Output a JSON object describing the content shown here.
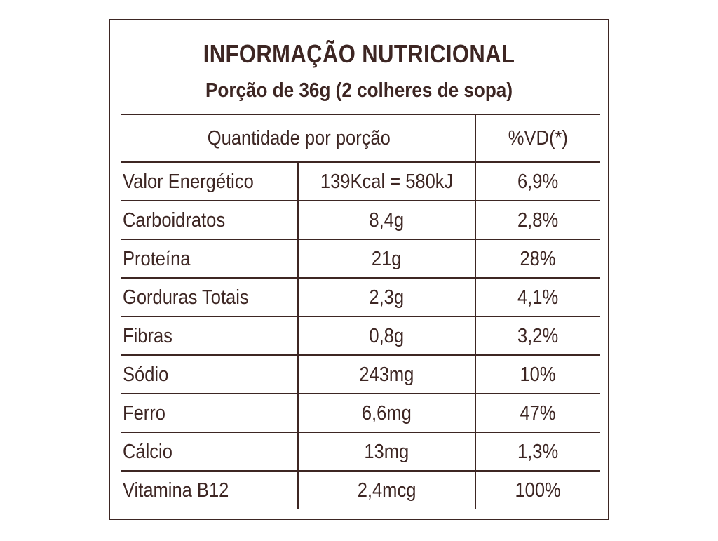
{
  "label": {
    "title": "INFORMAÇÃO NUTRICIONAL",
    "subtitle": "Porção de 36g (2 colheres de sopa)",
    "header": {
      "quantity_label": "Quantidade por porção",
      "vd_label": "%VD(*)"
    },
    "rows": [
      {
        "name": "Valor Energético",
        "amount": "139Kcal = 580kJ",
        "vd": "6,9%"
      },
      {
        "name": "Carboidratos",
        "amount": "8,4g",
        "vd": "2,8%"
      },
      {
        "name": "Proteína",
        "amount": "21g",
        "vd": "28%"
      },
      {
        "name": "Gorduras Totais",
        "amount": "2,3g",
        "vd": "4,1%"
      },
      {
        "name": "Fibras",
        "amount": "0,8g",
        "vd": "3,2%"
      },
      {
        "name": "Sódio",
        "amount": "243mg",
        "vd": "10%"
      },
      {
        "name": "Ferro",
        "amount": "6,6mg",
        "vd": "47%"
      },
      {
        "name": "Cálcio",
        "amount": "13mg",
        "vd": "1,3%"
      },
      {
        "name": "Vitamina B12",
        "amount": "2,4mcg",
        "vd": "100%"
      }
    ],
    "colors": {
      "ink": "#3d2623",
      "background": "#ffffff"
    }
  }
}
